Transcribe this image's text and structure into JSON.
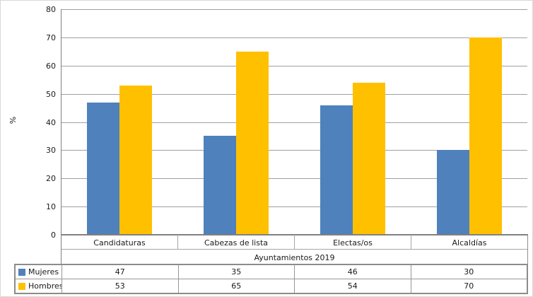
{
  "chart_data": {
    "type": "bar",
    "title": "",
    "categories": [
      "Candidaturas",
      "Cabezas de lista",
      "Electas/os",
      "Alcaldías"
    ],
    "series": [
      {
        "name": "Mujeres",
        "color": "#4F81BD",
        "values": [
          47,
          35,
          46,
          30
        ]
      },
      {
        "name": "Hombres",
        "color": "#FFC000",
        "values": [
          53,
          65,
          54,
          70
        ]
      }
    ],
    "xlabel": "Ayuntamientos 2019",
    "ylabel": "%",
    "ylim": [
      0,
      80
    ],
    "yticks": [
      0,
      10,
      20,
      30,
      40,
      50,
      60,
      70,
      80
    ],
    "grid": true,
    "gridline_color": "#a0a0a0",
    "axis_color": "#808080",
    "legend_position": "data-table-left",
    "data_table": true
  }
}
